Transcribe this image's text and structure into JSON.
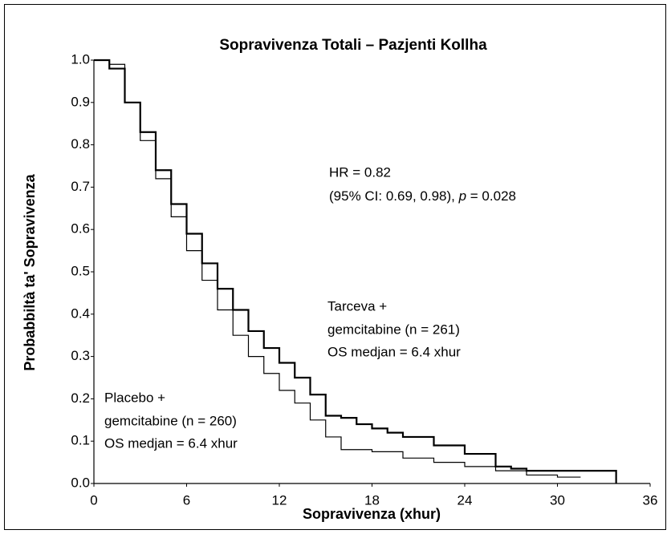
{
  "chart_data": {
    "type": "step",
    "title": "Sopravivenza Totali – Pazjenti Kollha",
    "xlabel": "Sopravivenza (xhur)",
    "ylabel": "Probabbiltà ta' Sopravivenza",
    "xlim": [
      0,
      36
    ],
    "xticks": [
      0,
      6,
      12,
      18,
      24,
      30,
      36
    ],
    "ylim": [
      0,
      1
    ],
    "yticks": [
      {
        "value": 0,
        "label": "0.0"
      },
      0.1,
      0.2,
      0.3,
      0.4,
      0.5,
      0.6,
      0.7,
      0.8,
      0.9,
      {
        "value": 1,
        "label": "1.0"
      }
    ],
    "annotations": {
      "hr": "HR = 0.82",
      "ci": [
        "(95% CI: 0.69, 0.98), ",
        "p",
        " = 0.028"
      ],
      "tarceva": [
        "Tarceva +",
        "gemcitabine (n = 261)",
        "OS medjan = 6.4 xhur"
      ],
      "placebo": [
        "Placebo +",
        "gemcitabine (n = 260)",
        "OS medjan = 6.4 xhur"
      ]
    },
    "series": [
      {
        "color": "#000000",
        "linewidth": 2.2,
        "x": [
          0,
          1,
          2,
          3,
          4,
          5,
          6,
          7,
          8,
          9,
          10,
          11,
          12,
          13,
          14,
          15,
          16,
          17,
          18,
          19,
          20,
          22,
          24,
          26,
          27,
          28,
          30,
          32,
          33.8
        ],
        "values": [
          1.0,
          0.98,
          0.9,
          0.83,
          0.74,
          0.66,
          0.59,
          0.52,
          0.46,
          0.41,
          0.36,
          0.32,
          0.285,
          0.25,
          0.21,
          0.16,
          0.155,
          0.14,
          0.13,
          0.12,
          0.11,
          0.09,
          0.07,
          0.04,
          0.035,
          0.03,
          0.03,
          0.03,
          0.0
        ]
      },
      {
        "color": "#000000",
        "linewidth": 1.2,
        "x": [
          0,
          1,
          2,
          3,
          4,
          5,
          6,
          7,
          8,
          9,
          10,
          11,
          12,
          13,
          14,
          15,
          16,
          18,
          20,
          22,
          24,
          26,
          28,
          30,
          31.5
        ],
        "values": [
          1.0,
          0.99,
          0.9,
          0.81,
          0.72,
          0.63,
          0.55,
          0.48,
          0.41,
          0.35,
          0.3,
          0.26,
          0.22,
          0.19,
          0.15,
          0.11,
          0.08,
          0.075,
          0.06,
          0.05,
          0.04,
          0.03,
          0.02,
          0.015,
          0.015
        ]
      }
    ]
  }
}
